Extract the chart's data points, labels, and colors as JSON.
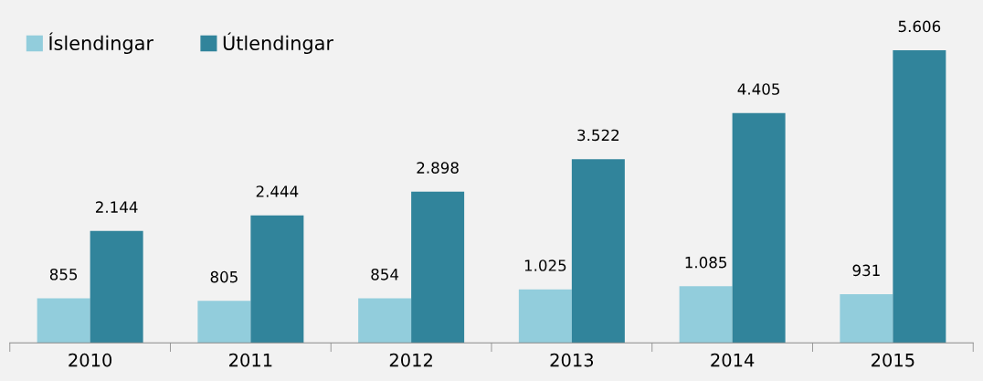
{
  "chart_data": {
    "type": "bar",
    "categories": [
      "2010",
      "2011",
      "2012",
      "2013",
      "2014",
      "2015"
    ],
    "series": [
      {
        "name": "Íslendingar",
        "color": "#92cddc",
        "values": [
          855,
          805,
          854,
          1025,
          1085,
          931
        ],
        "value_labels": [
          "855",
          "805",
          "854",
          "1.025",
          "1.085",
          "931"
        ]
      },
      {
        "name": "Útlendingar",
        "color": "#31849b",
        "values": [
          2144,
          2444,
          2898,
          3522,
          4405,
          5606
        ],
        "value_labels": [
          "2.144",
          "2.444",
          "2.898",
          "3.522",
          "4.405",
          "5.606"
        ]
      }
    ],
    "tick_labels": "x",
    "legend": "top left",
    "grid": false
  }
}
